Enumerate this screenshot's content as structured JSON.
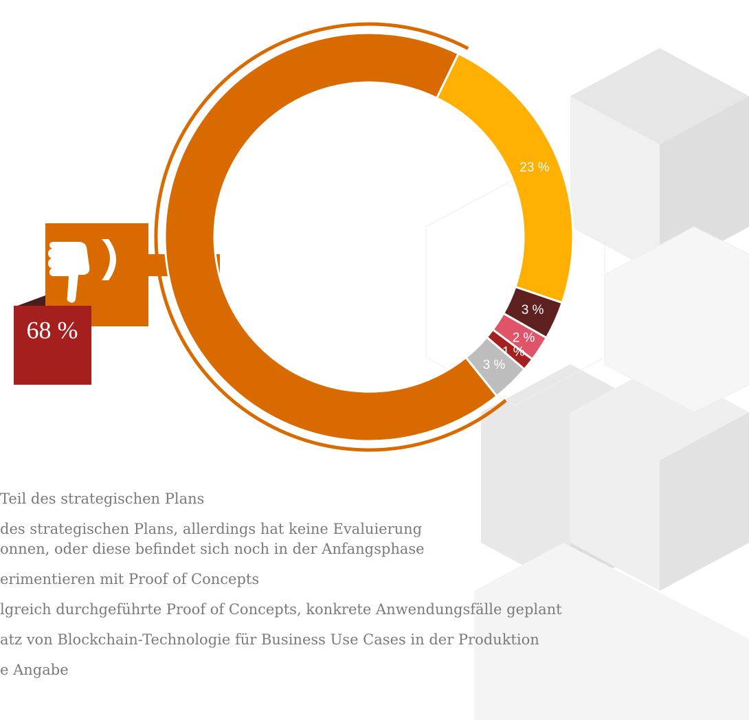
{
  "chart_data": {
    "type": "donut",
    "categories": [
      "Teil des strategischen Plans",
      "des strategischen Plans, allerdings hat keine Evaluierung\nonnen, oder diese befindet sich noch in der Anfangsphase",
      "erimentieren mit Proof of Concepts",
      "lgreich durchgeführte Proof of Concepts, konkrete Anwendungsfälle geplant",
      "atz von Blockchain-Technologie für Business Use Cases in der Produktion",
      "e Angabe"
    ],
    "values": [
      68,
      23,
      3,
      2,
      1,
      3
    ],
    "value_labels": [
      "68 %",
      "23 %",
      "3 %",
      "2 %",
      "1 %",
      "3 %"
    ],
    "colors": [
      "#d96a00",
      "#ffb000",
      "#5e2120",
      "#e0546a",
      "#a61f1f",
      "#bdbdbd"
    ]
  }
}
